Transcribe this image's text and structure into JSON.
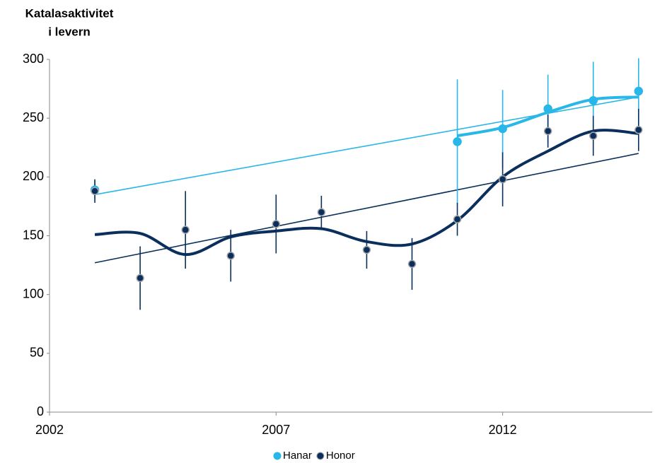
{
  "chart_data": {
    "type": "line",
    "y_label": [
      "Katalasaktivitet",
      "i levern"
    ],
    "x": [
      2003,
      2004,
      2005,
      2006,
      2007,
      2008,
      2009,
      2010,
      2011,
      2012,
      2013,
      2014,
      2015
    ],
    "xlim": [
      2002,
      2015.3
    ],
    "xticks": [
      2002,
      2007,
      2012
    ],
    "ylim": [
      0,
      300
    ],
    "yticks": [
      0,
      50,
      100,
      150,
      200,
      250,
      300
    ],
    "legend": "bottom",
    "series": [
      {
        "name": "Hanar",
        "color": "#29b6e8",
        "values": [
          189,
          null,
          null,
          null,
          null,
          null,
          null,
          null,
          230,
          241,
          258,
          265,
          273
        ],
        "errors": [
          8,
          null,
          null,
          null,
          null,
          null,
          null,
          null,
          53,
          33,
          29,
          33,
          28
        ],
        "smooth": {
          "x": [
            2011,
            2012,
            2013,
            2014,
            2015
          ],
          "values": [
            235,
            242,
            255,
            266,
            268
          ]
        },
        "trend": {
          "x": [
            2003,
            2015
          ],
          "values": [
            185,
            268
          ]
        }
      },
      {
        "name": "Honor",
        "color": "#0a2f5c",
        "values": [
          188,
          114,
          155,
          133,
          160,
          170,
          138,
          126,
          164,
          198,
          239,
          235,
          240
        ],
        "errors": [
          10,
          27,
          33,
          22,
          25,
          14,
          16,
          22,
          14,
          23,
          14,
          17,
          18
        ],
        "smooth": {
          "x": [
            2003,
            2004,
            2005,
            2006,
            2007,
            2008,
            2009,
            2010,
            2011,
            2012,
            2013,
            2014,
            2015
          ],
          "values": [
            151,
            152,
            134,
            149,
            154,
            156,
            145,
            143,
            163,
            200,
            222,
            239,
            237
          ]
        },
        "trend": {
          "x": [
            2003,
            2015
          ],
          "values": [
            127,
            220
          ]
        }
      }
    ]
  }
}
